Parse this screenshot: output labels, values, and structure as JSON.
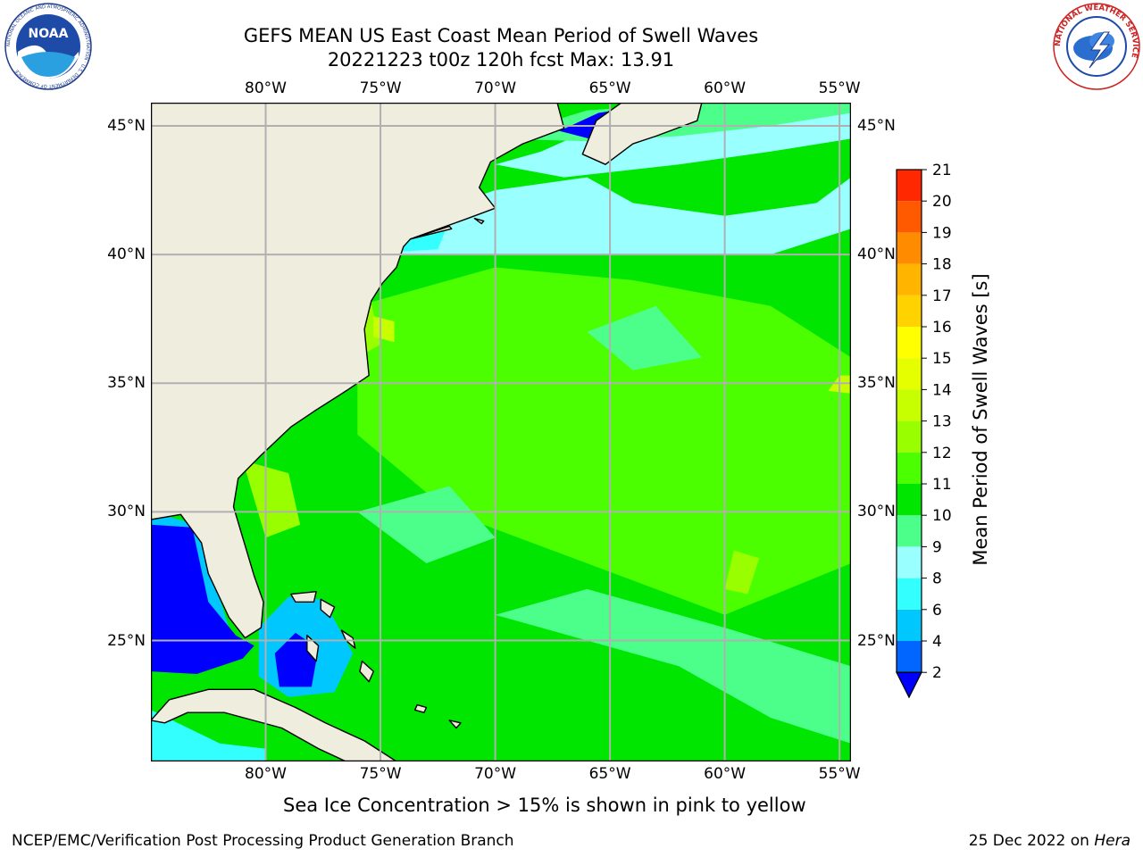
{
  "title": {
    "line1": "GEFS MEAN US East Coast Mean Period of Swell Waves",
    "line2": "20221223 t00z 120h fcst   Max: 13.91"
  },
  "logos": {
    "left": {
      "icon": "noaa-logo",
      "text": "NATIONAL OCEANIC AND ATMOSPHERIC ADMINISTRATION · U.S. DEPARTMENT OF COMMERCE",
      "wordmark": "NOAA"
    },
    "right": {
      "icon": "nws-logo",
      "text": "NATIONAL WEATHER SERVICE"
    }
  },
  "map": {
    "lon_range": [
      -85,
      -54.5
    ],
    "lat_range": [
      20.3,
      45.9
    ],
    "grid": true,
    "lon_ticks": [
      {
        "value": -80,
        "label": "80°W"
      },
      {
        "value": -75,
        "label": "75°W"
      },
      {
        "value": -70,
        "label": "70°W"
      },
      {
        "value": -65,
        "label": "65°W"
      },
      {
        "value": -60,
        "label": "60°W"
      },
      {
        "value": -55,
        "label": "55°W"
      }
    ],
    "lat_ticks": [
      {
        "value": 45,
        "label": "45°N"
      },
      {
        "value": 40,
        "label": "40°N"
      },
      {
        "value": 35,
        "label": "35°N"
      },
      {
        "value": 30,
        "label": "30°N"
      },
      {
        "value": 25,
        "label": "25°N"
      }
    ],
    "land_color": "#efedde",
    "ocean_dominant_color": "#4cff4c"
  },
  "colorbar": {
    "label": "Mean Period of Swell Waves [s]",
    "levels": [
      2,
      4,
      6,
      8,
      9,
      10,
      11,
      12,
      13,
      14,
      15,
      16,
      17,
      18,
      19,
      20,
      21
    ],
    "colors": [
      "#0066ff",
      "#00c8ff",
      "#33ffff",
      "#99ffff",
      "#4cff8a",
      "#00e600",
      "#4cff00",
      "#99ff00",
      "#c8ff00",
      "#e6ff00",
      "#ffff00",
      "#ffd200",
      "#ffb400",
      "#ff8c00",
      "#ff5a00",
      "#ff2800"
    ],
    "under_color": "#0000ff",
    "extend": "min"
  },
  "footer": {
    "note": "Sea Ice Concentration > 15% is shown in pink to yellow",
    "left": "NCEP/EMC/Verification Post Processing Product Generation Branch",
    "right_date": "25 Dec 2022 on ",
    "right_host": "Hera"
  }
}
